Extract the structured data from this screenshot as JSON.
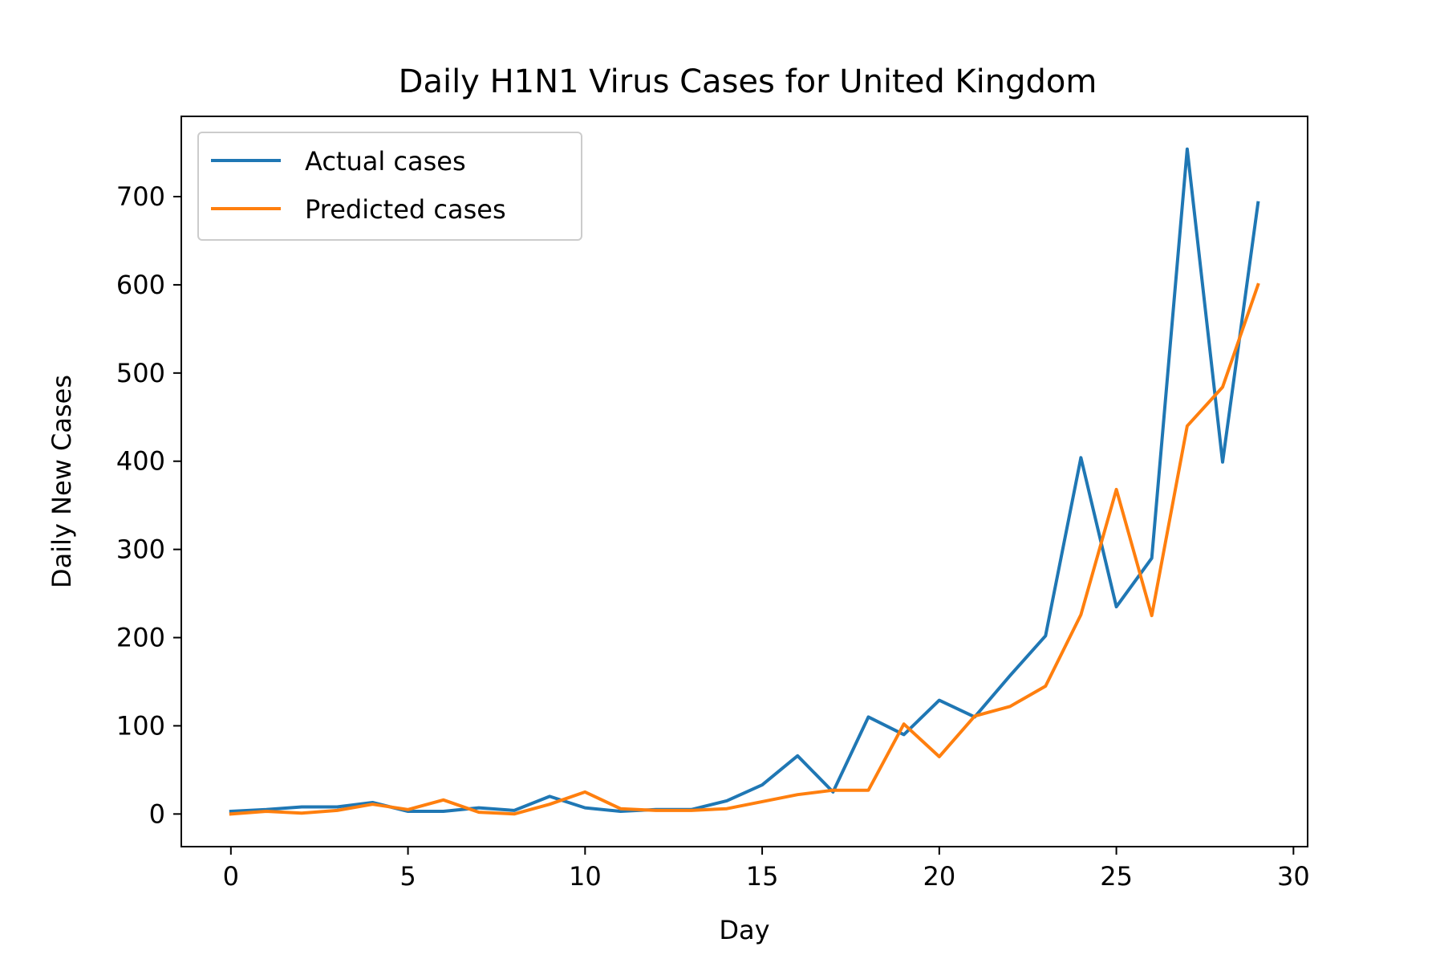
{
  "chart_data": {
    "type": "line",
    "title": "Daily H1N1 Virus Cases for United Kingdom",
    "xlabel": "Day",
    "ylabel": "Daily New Cases",
    "xlim": [
      -1.4,
      30.4
    ],
    "ylim": [
      -37,
      791
    ],
    "xticks": [
      0,
      5,
      10,
      15,
      20,
      25,
      30
    ],
    "yticks": [
      0,
      100,
      200,
      300,
      400,
      500,
      600,
      700
    ],
    "grid": false,
    "legend_position": "top-left",
    "x": [
      0,
      1,
      2,
      3,
      4,
      5,
      6,
      7,
      8,
      9,
      10,
      11,
      12,
      13,
      14,
      15,
      16,
      17,
      18,
      19,
      20,
      21,
      22,
      23,
      24,
      25,
      26,
      27,
      28,
      29
    ],
    "series": [
      {
        "name": "Actual cases",
        "color": "#1f77b4",
        "values": [
          3,
          5,
          8,
          8,
          13,
          3,
          3,
          7,
          4,
          20,
          7,
          3,
          5,
          5,
          15,
          33,
          66,
          25,
          110,
          90,
          129,
          110,
          157,
          202,
          404,
          235,
          290,
          754,
          399,
          693
        ]
      },
      {
        "name": "Predicted cases",
        "color": "#ff7f0e",
        "values": [
          0,
          3,
          1,
          4,
          11,
          5,
          16,
          2,
          0,
          11,
          25,
          6,
          4,
          4,
          6,
          14,
          22,
          27,
          27,
          102,
          65,
          111,
          122,
          145,
          226,
          368,
          225,
          440,
          484,
          600
        ]
      }
    ]
  }
}
